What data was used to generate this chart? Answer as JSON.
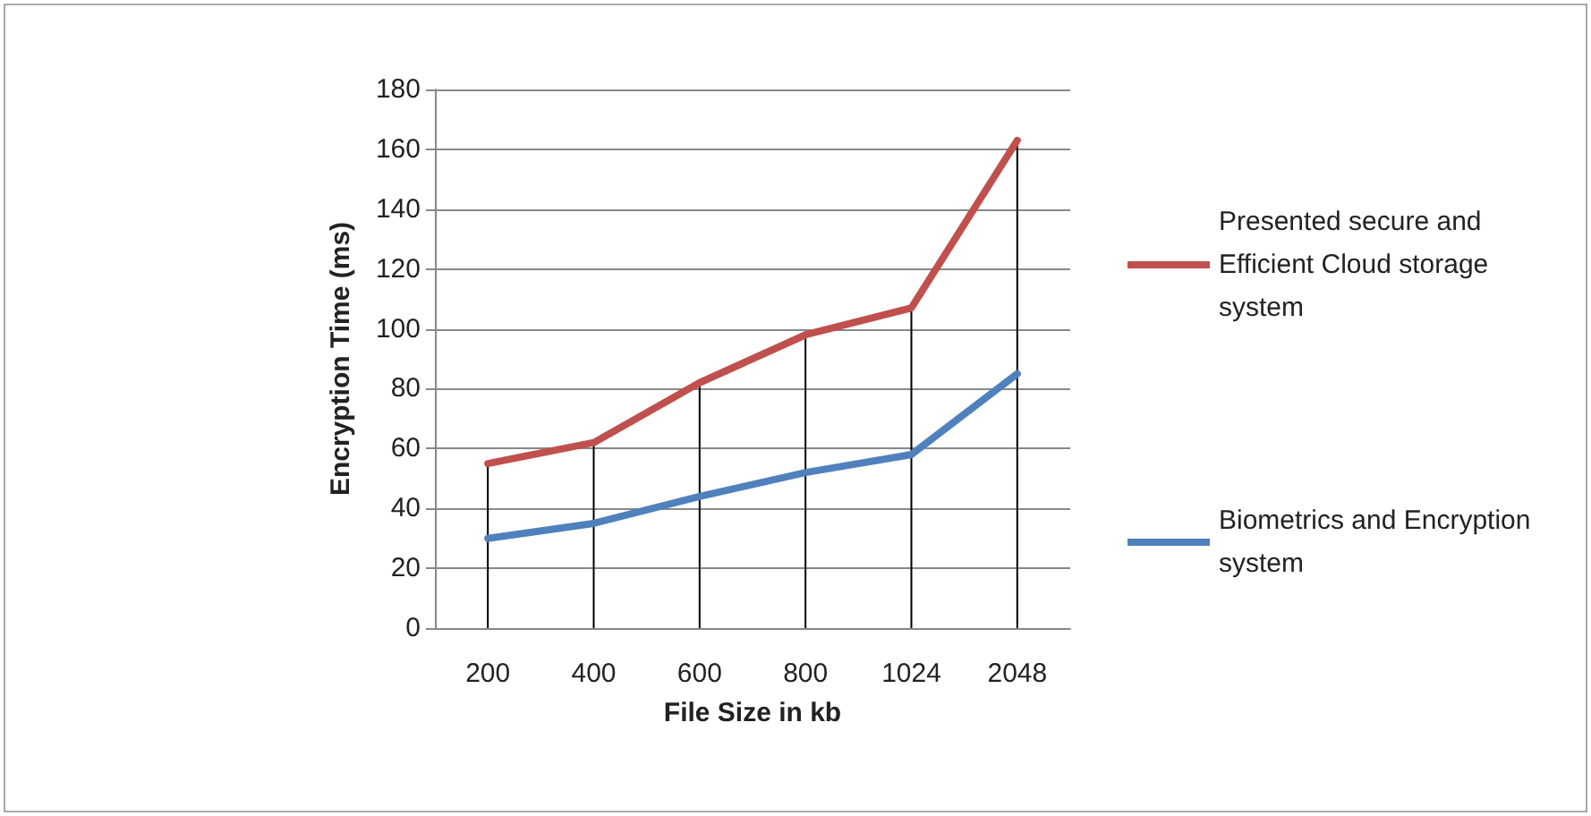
{
  "chart_data": {
    "type": "line",
    "xlabel": "File Size in kb",
    "ylabel": "Encryption Time (ms)",
    "categories": [
      "200",
      "400",
      "600",
      "800",
      "1024",
      "2048"
    ],
    "series": [
      {
        "name": "Presented secure and Efficient Cloud storage system",
        "color": "#c0504d",
        "values": [
          55,
          62,
          82,
          98,
          107,
          163
        ]
      },
      {
        "name": "Biometrics and Encryption system",
        "color": "#4f81bd",
        "values": [
          30,
          35,
          44,
          52,
          58,
          85
        ]
      },
      {
        "type": "bar",
        "color": "#000000",
        "values": [
          55,
          62,
          82,
          98,
          107,
          163
        ]
      }
    ],
    "ylim": [
      0,
      180
    ],
    "yticks": [
      0,
      20,
      40,
      60,
      80,
      100,
      120,
      140,
      160,
      180
    ],
    "grid": "y",
    "legend": "right",
    "marker": "none",
    "line_style": "solid"
  }
}
